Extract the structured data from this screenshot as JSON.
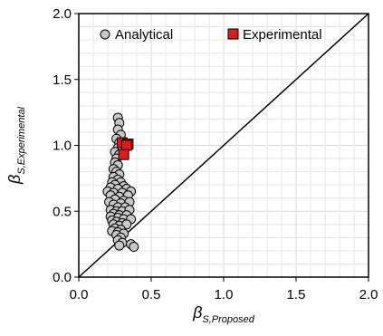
{
  "chart_data": {
    "type": "scatter",
    "xlim": [
      0,
      2.0
    ],
    "ylim": [
      0,
      2.0
    ],
    "x_ticks": [
      "0.0",
      "0.5",
      "1.0",
      "1.5",
      "2.0"
    ],
    "y_ticks": [
      "0.0",
      "0.5",
      "1.0",
      "1.5",
      "2.0"
    ],
    "xlabel": {
      "main": "β",
      "sub": "S,Proposed"
    },
    "ylabel": {
      "main": "β",
      "sub": "S,Experimental"
    },
    "grid": true,
    "legend_position": "top-left",
    "reference_line": {
      "x": [
        0,
        2.0
      ],
      "y": [
        0,
        2.0
      ],
      "color": "#000000"
    },
    "series": [
      {
        "name": "Analytical",
        "marker": "circle",
        "color": "#c8c8c8",
        "edge": "#000000",
        "points": [
          [
            0.27,
            1.21
          ],
          [
            0.28,
            1.17
          ],
          [
            0.27,
            1.12
          ],
          [
            0.29,
            1.08
          ],
          [
            0.26,
            1.05
          ],
          [
            0.28,
            1.02
          ],
          [
            0.27,
            0.98
          ],
          [
            0.25,
            0.95
          ],
          [
            0.28,
            0.93
          ],
          [
            0.26,
            0.9
          ],
          [
            0.25,
            0.87
          ],
          [
            0.27,
            0.85
          ],
          [
            0.24,
            0.82
          ],
          [
            0.26,
            0.8
          ],
          [
            0.28,
            0.78
          ],
          [
            0.24,
            0.76
          ],
          [
            0.27,
            0.74
          ],
          [
            0.23,
            0.72
          ],
          [
            0.29,
            0.72
          ],
          [
            0.25,
            0.7
          ],
          [
            0.31,
            0.69
          ],
          [
            0.22,
            0.68
          ],
          [
            0.27,
            0.67
          ],
          [
            0.33,
            0.67
          ],
          [
            0.2,
            0.65
          ],
          [
            0.24,
            0.64
          ],
          [
            0.3,
            0.64
          ],
          [
            0.36,
            0.65
          ],
          [
            0.22,
            0.62
          ],
          [
            0.28,
            0.61
          ],
          [
            0.34,
            0.62
          ],
          [
            0.25,
            0.59
          ],
          [
            0.31,
            0.58
          ],
          [
            0.21,
            0.57
          ],
          [
            0.29,
            0.56
          ],
          [
            0.35,
            0.57
          ],
          [
            0.24,
            0.55
          ],
          [
            0.27,
            0.53
          ],
          [
            0.32,
            0.53
          ],
          [
            0.22,
            0.51
          ],
          [
            0.26,
            0.5
          ],
          [
            0.3,
            0.5
          ],
          [
            0.35,
            0.51
          ],
          [
            0.24,
            0.48
          ],
          [
            0.28,
            0.47
          ],
          [
            0.33,
            0.47
          ],
          [
            0.22,
            0.46
          ],
          [
            0.27,
            0.45
          ],
          [
            0.31,
            0.44
          ],
          [
            0.36,
            0.44
          ],
          [
            0.23,
            0.43
          ],
          [
            0.26,
            0.42
          ],
          [
            0.3,
            0.41
          ],
          [
            0.24,
            0.4
          ],
          [
            0.28,
            0.39
          ],
          [
            0.33,
            0.4
          ],
          [
            0.25,
            0.37
          ],
          [
            0.29,
            0.36
          ],
          [
            0.23,
            0.35
          ],
          [
            0.27,
            0.34
          ],
          [
            0.31,
            0.33
          ],
          [
            0.26,
            0.32
          ],
          [
            0.29,
            0.3
          ],
          [
            0.27,
            0.28
          ],
          [
            0.3,
            0.26
          ],
          [
            0.28,
            0.24
          ],
          [
            0.36,
            0.25
          ],
          [
            0.38,
            0.23
          ]
        ]
      },
      {
        "name": "Experimental",
        "marker": "square",
        "color": "#e01b1b",
        "edge": "#000000",
        "points": [
          [
            0.3,
            1.02
          ],
          [
            0.34,
            1.01
          ],
          [
            0.33,
            1.0
          ],
          [
            0.31,
            0.93
          ]
        ]
      }
    ]
  }
}
